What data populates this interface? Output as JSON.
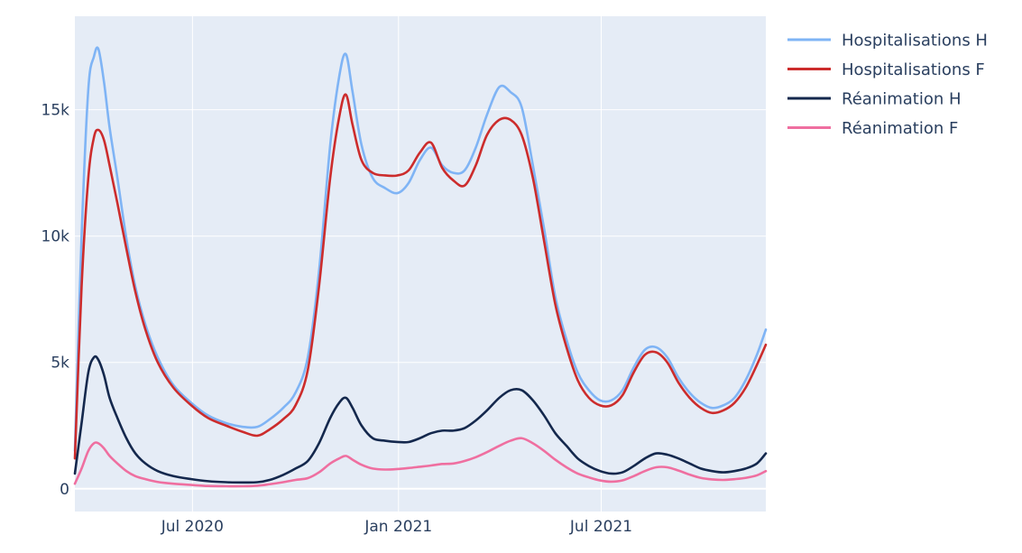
{
  "chart_data": {
    "type": "line",
    "title": "",
    "xlabel": "",
    "ylabel": "",
    "xlim": [
      "2020-03-18",
      "2021-11-25"
    ],
    "ylim": [
      -900,
      18700
    ],
    "grid": true,
    "legend_position": "right",
    "x_ticks": [
      {
        "date": "2020-07-01",
        "label": "Jul 2020"
      },
      {
        "date": "2021-01-01",
        "label": "Jan 2021"
      },
      {
        "date": "2021-07-01",
        "label": "Jul 2021"
      }
    ],
    "y_ticks": [
      {
        "value": 0,
        "label": "0"
      },
      {
        "value": 5000,
        "label": "5k"
      },
      {
        "value": 10000,
        "label": "10k"
      },
      {
        "value": 15000,
        "label": "15k"
      }
    ],
    "series": [
      {
        "name": "Hospitalisations H",
        "color": "#7fb4f5",
        "points": [
          [
            "2020-03-18",
            1500
          ],
          [
            "2020-03-24",
            10000
          ],
          [
            "2020-03-30",
            15800
          ],
          [
            "2020-04-04",
            17100
          ],
          [
            "2020-04-08",
            17400
          ],
          [
            "2020-04-13",
            16100
          ],
          [
            "2020-04-18",
            14300
          ],
          [
            "2020-04-25",
            12300
          ],
          [
            "2020-05-03",
            9900
          ],
          [
            "2020-05-11",
            8000
          ],
          [
            "2020-05-20",
            6500
          ],
          [
            "2020-05-31",
            5200
          ],
          [
            "2020-06-14",
            4100
          ],
          [
            "2020-06-30",
            3400
          ],
          [
            "2020-07-15",
            2900
          ],
          [
            "2020-07-31",
            2600
          ],
          [
            "2020-08-15",
            2450
          ],
          [
            "2020-08-28",
            2450
          ],
          [
            "2020-09-08",
            2750
          ],
          [
            "2020-09-20",
            3200
          ],
          [
            "2020-10-01",
            3800
          ],
          [
            "2020-10-12",
            5200
          ],
          [
            "2020-10-22",
            8600
          ],
          [
            "2020-11-01",
            13600
          ],
          [
            "2020-11-09",
            16300
          ],
          [
            "2020-11-15",
            17200
          ],
          [
            "2020-11-21",
            15700
          ],
          [
            "2020-11-29",
            13600
          ],
          [
            "2020-12-09",
            12300
          ],
          [
            "2020-12-20",
            11900
          ],
          [
            "2020-12-31",
            11700
          ],
          [
            "2021-01-10",
            12100
          ],
          [
            "2021-01-20",
            13000
          ],
          [
            "2021-01-30",
            13500
          ],
          [
            "2021-02-09",
            12800
          ],
          [
            "2021-02-19",
            12500
          ],
          [
            "2021-03-01",
            12600
          ],
          [
            "2021-03-11",
            13500
          ],
          [
            "2021-03-21",
            14800
          ],
          [
            "2021-04-01",
            15900
          ],
          [
            "2021-04-11",
            15700
          ],
          [
            "2021-04-21",
            15100
          ],
          [
            "2021-05-01",
            12800
          ],
          [
            "2021-05-11",
            10300
          ],
          [
            "2021-05-21",
            7600
          ],
          [
            "2021-05-31",
            5900
          ],
          [
            "2021-06-10",
            4600
          ],
          [
            "2021-06-20",
            3900
          ],
          [
            "2021-06-30",
            3500
          ],
          [
            "2021-07-10",
            3500
          ],
          [
            "2021-07-20",
            3900
          ],
          [
            "2021-07-30",
            4800
          ],
          [
            "2021-08-09",
            5500
          ],
          [
            "2021-08-19",
            5600
          ],
          [
            "2021-08-29",
            5200
          ],
          [
            "2021-09-08",
            4400
          ],
          [
            "2021-09-18",
            3800
          ],
          [
            "2021-09-28",
            3400
          ],
          [
            "2021-10-08",
            3200
          ],
          [
            "2021-10-18",
            3300
          ],
          [
            "2021-10-28",
            3600
          ],
          [
            "2021-11-07",
            4300
          ],
          [
            "2021-11-17",
            5300
          ],
          [
            "2021-11-25",
            6300
          ]
        ]
      },
      {
        "name": "Hospitalisations F",
        "color": "#cc2c2c",
        "points": [
          [
            "2020-03-18",
            1200
          ],
          [
            "2020-03-24",
            8000
          ],
          [
            "2020-03-30",
            12300
          ],
          [
            "2020-04-04",
            13900
          ],
          [
            "2020-04-08",
            14200
          ],
          [
            "2020-04-13",
            13800
          ],
          [
            "2020-04-18",
            12800
          ],
          [
            "2020-04-25",
            11300
          ],
          [
            "2020-05-03",
            9500
          ],
          [
            "2020-05-11",
            7800
          ],
          [
            "2020-05-20",
            6300
          ],
          [
            "2020-05-31",
            5000
          ],
          [
            "2020-06-14",
            4000
          ],
          [
            "2020-06-30",
            3300
          ],
          [
            "2020-07-15",
            2800
          ],
          [
            "2020-07-31",
            2500
          ],
          [
            "2020-08-15",
            2250
          ],
          [
            "2020-08-28",
            2100
          ],
          [
            "2020-09-08",
            2350
          ],
          [
            "2020-09-20",
            2750
          ],
          [
            "2020-10-01",
            3300
          ],
          [
            "2020-10-12",
            4700
          ],
          [
            "2020-10-22",
            8000
          ],
          [
            "2020-11-01",
            12300
          ],
          [
            "2020-11-09",
            14700
          ],
          [
            "2020-11-15",
            15600
          ],
          [
            "2020-11-21",
            14400
          ],
          [
            "2020-11-29",
            13000
          ],
          [
            "2020-12-09",
            12500
          ],
          [
            "2020-12-20",
            12400
          ],
          [
            "2020-12-31",
            12400
          ],
          [
            "2021-01-10",
            12600
          ],
          [
            "2021-01-20",
            13300
          ],
          [
            "2021-01-30",
            13700
          ],
          [
            "2021-02-09",
            12700
          ],
          [
            "2021-02-19",
            12200
          ],
          [
            "2021-03-01",
            12000
          ],
          [
            "2021-03-11",
            12800
          ],
          [
            "2021-03-21",
            14000
          ],
          [
            "2021-04-01",
            14600
          ],
          [
            "2021-04-11",
            14600
          ],
          [
            "2021-04-21",
            14000
          ],
          [
            "2021-05-01",
            12300
          ],
          [
            "2021-05-11",
            9800
          ],
          [
            "2021-05-21",
            7300
          ],
          [
            "2021-05-31",
            5600
          ],
          [
            "2021-06-10",
            4300
          ],
          [
            "2021-06-20",
            3600
          ],
          [
            "2021-06-30",
            3300
          ],
          [
            "2021-07-10",
            3300
          ],
          [
            "2021-07-20",
            3700
          ],
          [
            "2021-07-30",
            4600
          ],
          [
            "2021-08-09",
            5300
          ],
          [
            "2021-08-19",
            5400
          ],
          [
            "2021-08-29",
            5000
          ],
          [
            "2021-09-08",
            4200
          ],
          [
            "2021-09-18",
            3600
          ],
          [
            "2021-09-28",
            3200
          ],
          [
            "2021-10-08",
            3000
          ],
          [
            "2021-10-18",
            3100
          ],
          [
            "2021-10-28",
            3400
          ],
          [
            "2021-11-07",
            4000
          ],
          [
            "2021-11-17",
            4900
          ],
          [
            "2021-11-25",
            5700
          ]
        ]
      },
      {
        "name": "Réanimation H",
        "color": "#14284d",
        "points": [
          [
            "2020-03-18",
            600
          ],
          [
            "2020-03-24",
            2600
          ],
          [
            "2020-03-30",
            4600
          ],
          [
            "2020-04-04",
            5200
          ],
          [
            "2020-04-08",
            5100
          ],
          [
            "2020-04-13",
            4500
          ],
          [
            "2020-04-18",
            3600
          ],
          [
            "2020-04-25",
            2800
          ],
          [
            "2020-05-03",
            2000
          ],
          [
            "2020-05-11",
            1400
          ],
          [
            "2020-05-20",
            1000
          ],
          [
            "2020-05-31",
            700
          ],
          [
            "2020-06-14",
            500
          ],
          [
            "2020-06-30",
            380
          ],
          [
            "2020-07-15",
            300
          ],
          [
            "2020-07-31",
            260
          ],
          [
            "2020-08-15",
            250
          ],
          [
            "2020-08-28",
            260
          ],
          [
            "2020-09-08",
            350
          ],
          [
            "2020-09-20",
            550
          ],
          [
            "2020-10-01",
            800
          ],
          [
            "2020-10-12",
            1100
          ],
          [
            "2020-10-22",
            1800
          ],
          [
            "2020-11-01",
            2800
          ],
          [
            "2020-11-09",
            3400
          ],
          [
            "2020-11-15",
            3600
          ],
          [
            "2020-11-21",
            3200
          ],
          [
            "2020-11-29",
            2500
          ],
          [
            "2020-12-09",
            2000
          ],
          [
            "2020-12-20",
            1900
          ],
          [
            "2020-12-31",
            1850
          ],
          [
            "2021-01-10",
            1850
          ],
          [
            "2021-01-20",
            2000
          ],
          [
            "2021-01-30",
            2200
          ],
          [
            "2021-02-09",
            2300
          ],
          [
            "2021-02-19",
            2300
          ],
          [
            "2021-03-01",
            2400
          ],
          [
            "2021-03-11",
            2700
          ],
          [
            "2021-03-21",
            3100
          ],
          [
            "2021-04-01",
            3600
          ],
          [
            "2021-04-11",
            3900
          ],
          [
            "2021-04-21",
            3900
          ],
          [
            "2021-05-01",
            3500
          ],
          [
            "2021-05-11",
            2900
          ],
          [
            "2021-05-21",
            2200
          ],
          [
            "2021-05-31",
            1700
          ],
          [
            "2021-06-10",
            1200
          ],
          [
            "2021-06-20",
            900
          ],
          [
            "2021-06-30",
            700
          ],
          [
            "2021-07-10",
            600
          ],
          [
            "2021-07-20",
            650
          ],
          [
            "2021-07-30",
            900
          ],
          [
            "2021-08-09",
            1200
          ],
          [
            "2021-08-19",
            1400
          ],
          [
            "2021-08-29",
            1350
          ],
          [
            "2021-09-08",
            1200
          ],
          [
            "2021-09-18",
            1000
          ],
          [
            "2021-09-28",
            800
          ],
          [
            "2021-10-08",
            700
          ],
          [
            "2021-10-18",
            650
          ],
          [
            "2021-10-28",
            700
          ],
          [
            "2021-11-07",
            800
          ],
          [
            "2021-11-17",
            1000
          ],
          [
            "2021-11-25",
            1400
          ]
        ]
      },
      {
        "name": "Réanimation F",
        "color": "#ef6fa0",
        "points": [
          [
            "2020-03-18",
            200
          ],
          [
            "2020-03-24",
            800
          ],
          [
            "2020-03-30",
            1500
          ],
          [
            "2020-04-04",
            1800
          ],
          [
            "2020-04-08",
            1800
          ],
          [
            "2020-04-13",
            1600
          ],
          [
            "2020-04-18",
            1300
          ],
          [
            "2020-04-25",
            1000
          ],
          [
            "2020-05-03",
            700
          ],
          [
            "2020-05-11",
            500
          ],
          [
            "2020-05-20",
            380
          ],
          [
            "2020-05-31",
            270
          ],
          [
            "2020-06-14",
            200
          ],
          [
            "2020-06-30",
            150
          ],
          [
            "2020-07-15",
            110
          ],
          [
            "2020-07-31",
            100
          ],
          [
            "2020-08-15",
            100
          ],
          [
            "2020-08-28",
            120
          ],
          [
            "2020-09-08",
            180
          ],
          [
            "2020-09-20",
            260
          ],
          [
            "2020-10-01",
            350
          ],
          [
            "2020-10-12",
            420
          ],
          [
            "2020-10-22",
            650
          ],
          [
            "2020-11-01",
            1000
          ],
          [
            "2020-11-09",
            1200
          ],
          [
            "2020-11-15",
            1300
          ],
          [
            "2020-11-21",
            1150
          ],
          [
            "2020-11-29",
            950
          ],
          [
            "2020-12-09",
            800
          ],
          [
            "2020-12-20",
            760
          ],
          [
            "2020-12-31",
            780
          ],
          [
            "2021-01-10",
            820
          ],
          [
            "2021-01-20",
            870
          ],
          [
            "2021-01-30",
            920
          ],
          [
            "2021-02-09",
            980
          ],
          [
            "2021-02-19",
            1000
          ],
          [
            "2021-03-01",
            1100
          ],
          [
            "2021-03-11",
            1250
          ],
          [
            "2021-03-21",
            1450
          ],
          [
            "2021-04-01",
            1700
          ],
          [
            "2021-04-11",
            1900
          ],
          [
            "2021-04-21",
            2000
          ],
          [
            "2021-05-01",
            1800
          ],
          [
            "2021-05-11",
            1500
          ],
          [
            "2021-05-21",
            1150
          ],
          [
            "2021-05-31",
            850
          ],
          [
            "2021-06-10",
            600
          ],
          [
            "2021-06-20",
            450
          ],
          [
            "2021-06-30",
            330
          ],
          [
            "2021-07-10",
            280
          ],
          [
            "2021-07-20",
            330
          ],
          [
            "2021-07-30",
            500
          ],
          [
            "2021-08-09",
            700
          ],
          [
            "2021-08-19",
            850
          ],
          [
            "2021-08-29",
            850
          ],
          [
            "2021-09-08",
            720
          ],
          [
            "2021-09-18",
            560
          ],
          [
            "2021-09-28",
            430
          ],
          [
            "2021-10-08",
            370
          ],
          [
            "2021-10-18",
            350
          ],
          [
            "2021-10-28",
            380
          ],
          [
            "2021-11-07",
            430
          ],
          [
            "2021-11-17",
            530
          ],
          [
            "2021-11-25",
            700
          ]
        ]
      }
    ]
  }
}
